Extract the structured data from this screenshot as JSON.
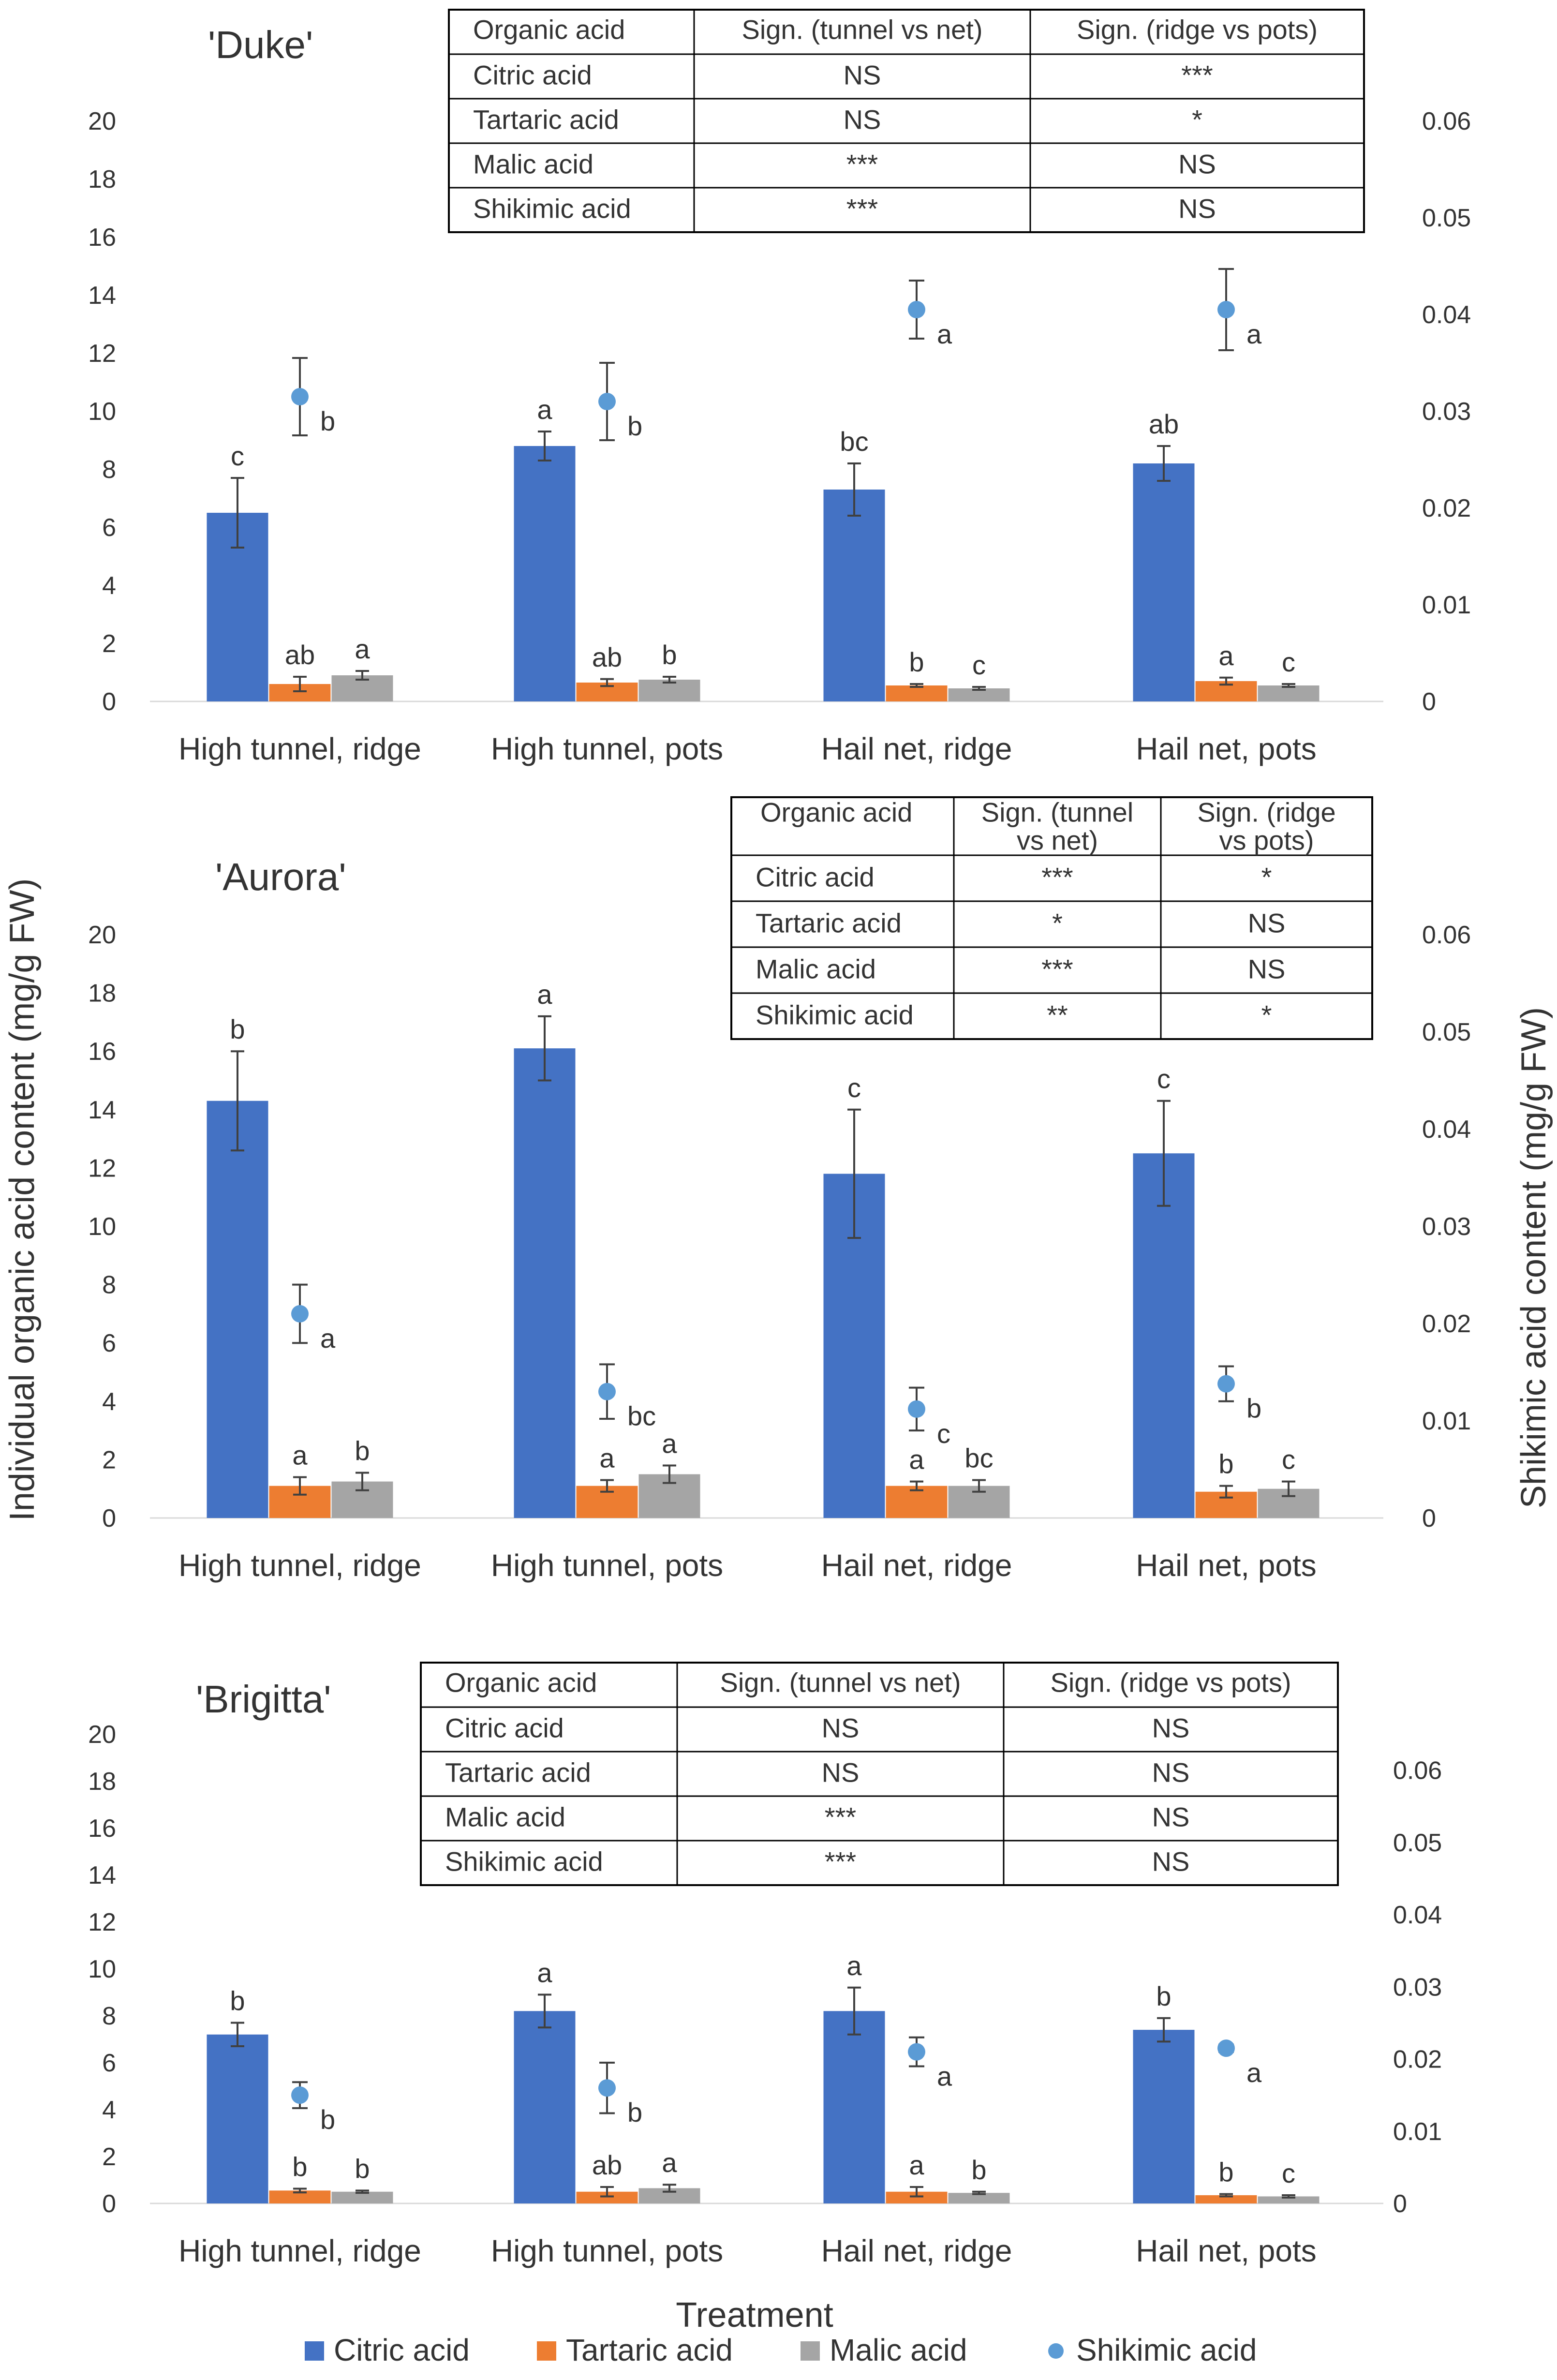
{
  "chart_data": {
    "type": "bar",
    "ylabel_left": "Individual organic acid content (mg/g FW)",
    "ylabel_right": "Shikimic acid content (mg/g FW)",
    "xlabel": "Treatment",
    "legend": [
      {
        "name": "Citric acid",
        "color": "#4472C4",
        "kind": "bar"
      },
      {
        "name": "Tartaric acid",
        "color": "#ED7D31",
        "kind": "bar"
      },
      {
        "name": "Malic acid",
        "color": "#A5A5A5",
        "kind": "bar"
      },
      {
        "name": "Shikimic acid",
        "color": "#5B9BD5",
        "kind": "point"
      }
    ],
    "panels": [
      {
        "title": "'Duke'",
        "categories": [
          "High tunnel, ridge",
          "High tunnel, pots",
          "Hail net, ridge",
          "Hail net, pots"
        ],
        "left_ticks": [
          "0",
          "2",
          "4",
          "6",
          "8",
          "10",
          "12",
          "14",
          "16",
          "18",
          "20"
        ],
        "right_ticks": [
          "0",
          "0.01",
          "0.02",
          "0.03",
          "0.04",
          "0.05",
          "0.06"
        ],
        "ylim_left": [
          0,
          20
        ],
        "ylim_right": [
          0,
          0.06
        ],
        "series": [
          {
            "name": "Citric acid",
            "values": [
              6.5,
              8.8,
              7.3,
              8.2
            ],
            "errors": [
              1.2,
              0.5,
              0.9,
              0.6
            ],
            "letters": [
              "c",
              "a",
              "bc",
              "ab"
            ]
          },
          {
            "name": "Tartaric acid",
            "values": [
              0.6,
              0.65,
              0.55,
              0.7
            ],
            "errors": [
              0.25,
              0.12,
              0.05,
              0.12
            ],
            "letters": [
              "ab",
              "ab",
              "b",
              "a"
            ]
          },
          {
            "name": "Malic acid",
            "values": [
              0.9,
              0.75,
              0.45,
              0.55
            ],
            "errors": [
              0.15,
              0.1,
              0.05,
              0.05
            ],
            "letters": [
              "a",
              "b",
              "c",
              "c"
            ]
          },
          {
            "name": "Shikimic acid",
            "values": [
              0.0315,
              0.031,
              0.0405,
              0.0405
            ],
            "errors": [
              0.004,
              0.004,
              0.003,
              0.0042
            ],
            "letters": [
              "b",
              "b",
              "a",
              "a"
            ]
          }
        ],
        "table": {
          "headers": [
            "Organic acid",
            "Sign. (tunnel vs net)",
            "Sign. (ridge vs pots)"
          ],
          "rows": [
            [
              "Citric acid",
              "NS",
              "***"
            ],
            [
              "Tartaric acid",
              "NS",
              "*"
            ],
            [
              "Malic acid",
              "***",
              "NS"
            ],
            [
              "Shikimic acid",
              "***",
              "NS"
            ]
          ]
        }
      },
      {
        "title": "'Aurora'",
        "categories": [
          "High tunnel, ridge",
          "High tunnel, pots",
          "Hail net, ridge",
          "Hail net, pots"
        ],
        "left_ticks": [
          "0",
          "2",
          "4",
          "6",
          "8",
          "10",
          "12",
          "14",
          "16",
          "18",
          "20"
        ],
        "right_ticks": [
          "0",
          "0.01",
          "0.02",
          "0.03",
          "0.04",
          "0.05",
          "0.06"
        ],
        "ylim_left": [
          0,
          20
        ],
        "ylim_right": [
          0,
          0.06
        ],
        "series": [
          {
            "name": "Citric acid",
            "values": [
              14.3,
              16.1,
              11.8,
              12.5
            ],
            "errors": [
              1.7,
              1.1,
              2.2,
              1.8
            ],
            "letters": [
              "b",
              "a",
              "c",
              "c"
            ]
          },
          {
            "name": "Tartaric acid",
            "values": [
              1.1,
              1.1,
              1.1,
              0.9
            ],
            "errors": [
              0.3,
              0.2,
              0.15,
              0.2
            ],
            "letters": [
              "a",
              "a",
              "a",
              "b"
            ]
          },
          {
            "name": "Malic acid",
            "values": [
              1.25,
              1.5,
              1.1,
              1.0
            ],
            "errors": [
              0.3,
              0.3,
              0.2,
              0.25
            ],
            "letters": [
              "b",
              "a",
              "bc",
              "c"
            ]
          },
          {
            "name": "Shikimic acid",
            "values": [
              0.021,
              0.013,
              0.0112,
              0.0138
            ],
            "errors": [
              0.003,
              0.0028,
              0.0022,
              0.0018
            ],
            "letters": [
              "a",
              "bc",
              "c",
              "b"
            ]
          }
        ],
        "table": {
          "headers": [
            "Organic acid",
            "Sign. (tunnel vs net)",
            "Sign. (ridge vs pots)"
          ],
          "rows": [
            [
              "Citric acid",
              "***",
              "*"
            ],
            [
              "Tartaric acid",
              "*",
              "NS"
            ],
            [
              "Malic acid",
              "***",
              "NS"
            ],
            [
              "Shikimic acid",
              "**",
              "*"
            ]
          ]
        }
      },
      {
        "title": "'Brigitta'",
        "categories": [
          "High tunnel, ridge",
          "High tunnel, pots",
          "Hail net, ridge",
          "Hail net, pots"
        ],
        "left_ticks": [
          "0",
          "2",
          "4",
          "6",
          "8",
          "10",
          "12",
          "14",
          "16",
          "18",
          "20"
        ],
        "right_ticks": [
          "0",
          "0.01",
          "0.02",
          "0.03",
          "0.04",
          "0.05",
          "0.06"
        ],
        "ylim_left": [
          0,
          20
        ],
        "ylim_right": [
          0,
          0.065
        ],
        "series": [
          {
            "name": "Citric acid",
            "values": [
              7.2,
              8.2,
              8.2,
              7.4
            ],
            "errors": [
              0.5,
              0.7,
              1.0,
              0.5
            ],
            "letters": [
              "b",
              "a",
              "a",
              "b"
            ]
          },
          {
            "name": "Tartaric acid",
            "values": [
              0.55,
              0.5,
              0.5,
              0.35
            ],
            "errors": [
              0.08,
              0.2,
              0.2,
              0.05
            ],
            "letters": [
              "b",
              "ab",
              "a",
              "b"
            ]
          },
          {
            "name": "Malic acid",
            "values": [
              0.5,
              0.65,
              0.45,
              0.3
            ],
            "errors": [
              0.05,
              0.15,
              0.05,
              0.05
            ],
            "letters": [
              "b",
              "a",
              "b",
              "c"
            ]
          },
          {
            "name": "Shikimic acid",
            "values": [
              0.015,
              0.016,
              0.021,
              0.0215
            ],
            "errors": [
              0.0018,
              0.0035,
              0.002,
              0.0005
            ],
            "letters": [
              "b",
              "b",
              "a",
              "a"
            ]
          }
        ],
        "table": {
          "headers": [
            "Organic acid",
            "Sign. (tunnel vs net)",
            "Sign. (ridge vs pots)"
          ],
          "rows": [
            [
              "Citric acid",
              "NS",
              "NS"
            ],
            [
              "Tartaric acid",
              "NS",
              "NS"
            ],
            [
              "Malic acid",
              "***",
              "NS"
            ],
            [
              "Shikimic acid",
              "***",
              "NS"
            ]
          ]
        }
      }
    ]
  }
}
